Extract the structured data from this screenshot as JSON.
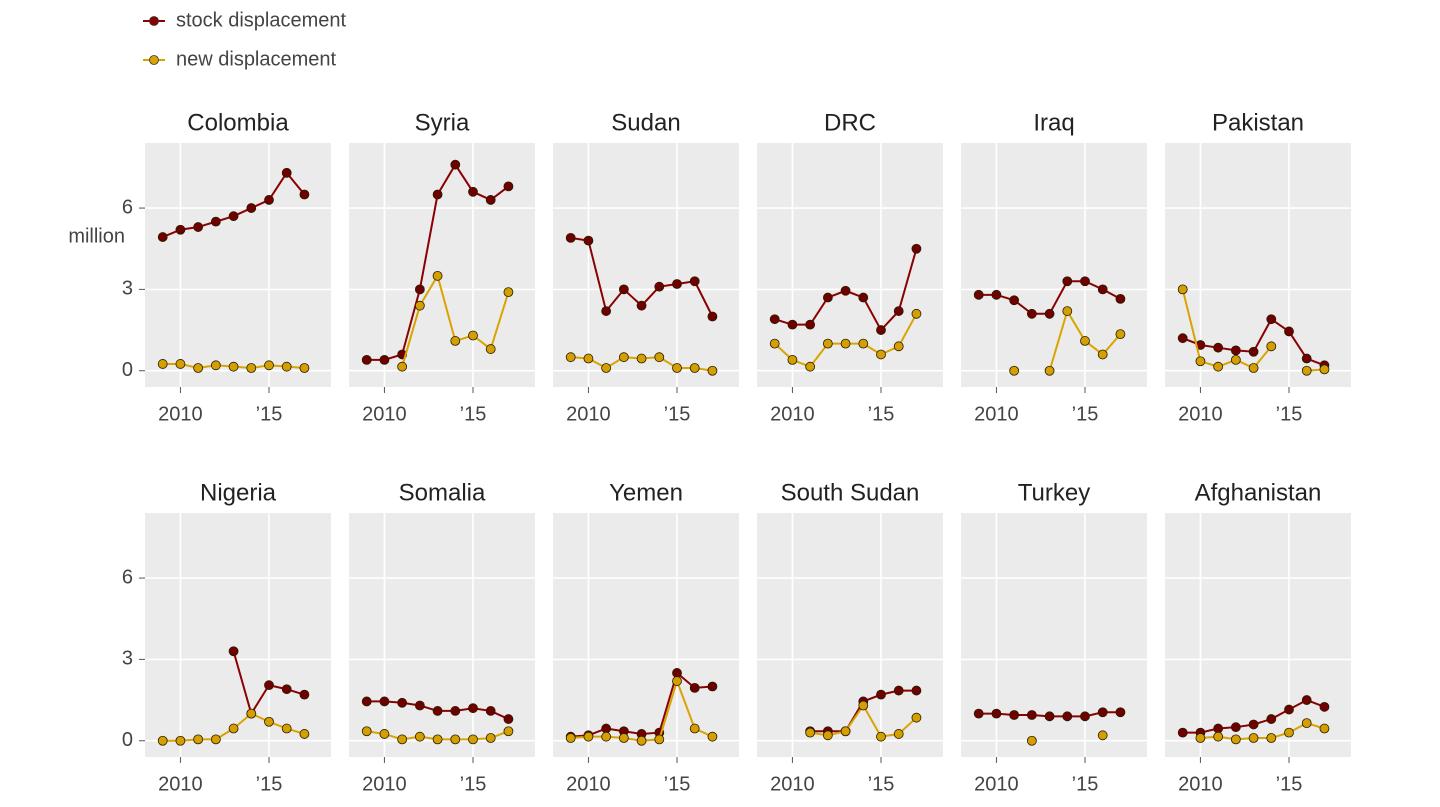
{
  "chart_data": {
    "type": "line",
    "ylabel": "million",
    "x": [
      2009,
      2010,
      2011,
      2012,
      2013,
      2014,
      2015,
      2016,
      2017
    ],
    "xlim": [
      2008,
      2018.5
    ],
    "xticks": [
      2010,
      {
        "value": 2015,
        "label": "’15"
      }
    ],
    "ylim": [
      -0.6,
      8.4
    ],
    "yticks": [
      0,
      3,
      6
    ],
    "grid": true,
    "legend": "top-left",
    "series": [
      {
        "name": "stock displacement",
        "color": "#8b0000"
      },
      {
        "name": "new displacement",
        "color": "#d9a400"
      }
    ],
    "panels": [
      {
        "title": "Colombia",
        "series": [
          {
            "values": [
              4.93,
              5.2,
              5.3,
              5.5,
              5.7,
              6.0,
              6.3,
              7.3,
              6.5
            ]
          },
          {
            "values": [
              0.25,
              0.25,
              0.1,
              0.2,
              0.15,
              0.1,
              0.2,
              0.15,
              0.1
            ]
          }
        ]
      },
      {
        "title": "Syria",
        "series": [
          {
            "values": [
              0.4,
              0.4,
              0.6,
              3.0,
              6.5,
              7.6,
              6.6,
              6.3,
              6.8
            ]
          },
          {
            "values": [
              null,
              null,
              0.15,
              2.4,
              3.5,
              1.1,
              1.3,
              0.8,
              2.9
            ]
          }
        ]
      },
      {
        "title": "Sudan",
        "series": [
          {
            "values": [
              4.9,
              4.8,
              2.2,
              3.0,
              2.4,
              3.1,
              3.2,
              3.3,
              2.0
            ]
          },
          {
            "values": [
              0.5,
              0.45,
              0.1,
              0.5,
              0.45,
              0.5,
              0.1,
              0.1,
              0
            ]
          }
        ]
      },
      {
        "title": "DRC",
        "series": [
          {
            "values": [
              1.9,
              1.7,
              1.7,
              2.7,
              2.95,
              2.7,
              1.5,
              2.2,
              4.5
            ]
          },
          {
            "values": [
              1.0,
              0.4,
              0.15,
              1.0,
              1.0,
              1.0,
              0.6,
              0.9,
              2.1
            ]
          }
        ]
      },
      {
        "title": "Iraq",
        "series": [
          {
            "values": [
              2.8,
              2.8,
              2.6,
              2.1,
              2.1,
              3.3,
              3.3,
              3.0,
              2.65
            ]
          },
          {
            "values": [
              null,
              null,
              0,
              null,
              0,
              2.2,
              1.1,
              0.6,
              1.35
            ]
          }
        ]
      },
      {
        "title": "Pakistan",
        "series": [
          {
            "values": [
              1.2,
              0.95,
              0.85,
              0.75,
              0.7,
              1.9,
              1.45,
              0.45,
              0.2
            ]
          },
          {
            "values": [
              3.0,
              0.35,
              0.15,
              0.4,
              0.1,
              0.9,
              null,
              0,
              0.05
            ]
          }
        ]
      },
      {
        "title": "Nigeria",
        "series": [
          {
            "values": [
              null,
              null,
              null,
              null,
              3.3,
              1.0,
              2.05,
              1.9,
              1.7
            ]
          },
          {
            "values": [
              0,
              0,
              0.05,
              0.05,
              0.45,
              1.0,
              0.7,
              0.45,
              0.25
            ]
          }
        ]
      },
      {
        "title": "Somalia",
        "series": [
          {
            "values": [
              1.45,
              1.45,
              1.4,
              1.3,
              1.1,
              1.1,
              1.2,
              1.1,
              0.8
            ]
          },
          {
            "values": [
              0.35,
              0.25,
              0.05,
              0.15,
              0.05,
              0.05,
              0.05,
              0.1,
              0.35
            ]
          }
        ]
      },
      {
        "title": "Yemen",
        "series": [
          {
            "values": [
              0.15,
              0.2,
              0.45,
              0.35,
              0.25,
              0.3,
              2.5,
              1.95,
              2.0
            ]
          },
          {
            "values": [
              0.1,
              0.15,
              0.15,
              0.1,
              0,
              0.05,
              2.2,
              0.45,
              0.15
            ]
          }
        ]
      },
      {
        "title": "South Sudan",
        "series": [
          {
            "values": [
              null,
              null,
              0.35,
              0.35,
              0.35,
              1.45,
              1.7,
              1.85,
              1.85
            ]
          },
          {
            "values": [
              null,
              null,
              0.3,
              0.2,
              0.35,
              1.3,
              0.15,
              0.25,
              0.85
            ]
          }
        ]
      },
      {
        "title": "Turkey",
        "series": [
          {
            "values": [
              1.0,
              1.0,
              0.95,
              0.95,
              0.9,
              0.9,
              0.9,
              1.05,
              1.05
            ]
          },
          {
            "values": [
              null,
              null,
              null,
              0,
              null,
              null,
              null,
              0.2,
              null
            ]
          }
        ]
      },
      {
        "title": "Afghanistan",
        "series": [
          {
            "values": [
              0.3,
              0.3,
              0.45,
              0.5,
              0.6,
              0.8,
              1.15,
              1.5,
              1.25
            ]
          },
          {
            "values": [
              null,
              0.1,
              0.15,
              0.05,
              0.1,
              0.1,
              0.3,
              0.65,
              0.45
            ]
          }
        ]
      }
    ]
  }
}
